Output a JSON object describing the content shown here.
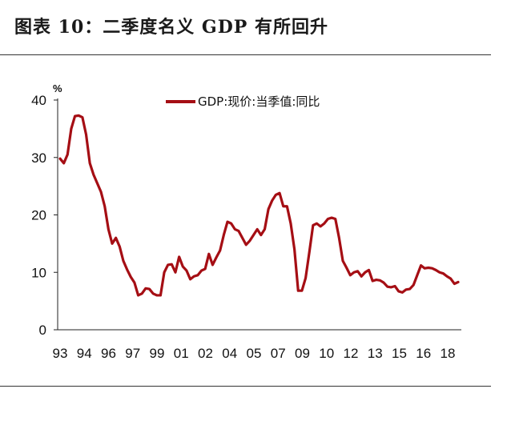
{
  "header": {
    "title": "图表 10：二季度名义 GDP 有所回升"
  },
  "chart_data": {
    "type": "line",
    "title": "图表 10：二季度名义 GDP 有所回升",
    "ylabel": "%",
    "ylim": [
      0,
      40
    ],
    "yticks": [
      0,
      10,
      20,
      30,
      40
    ],
    "x_tick_labels": [
      "93",
      "94",
      "96",
      "97",
      "99",
      "01",
      "02",
      "04",
      "05",
      "07",
      "09",
      "10",
      "12",
      "13",
      "15",
      "16",
      "18"
    ],
    "legend": "top-center",
    "colors": {
      "line": "#a50e14"
    },
    "series": [
      {
        "name": "GDP:现价:当季值:同比",
        "values": [
          29.8,
          29.0,
          30.5,
          35.0,
          37.2,
          37.3,
          37.0,
          34.0,
          29.0,
          27.0,
          25.5,
          24.0,
          21.5,
          17.5,
          15.0,
          16.0,
          14.5,
          12.0,
          10.5,
          9.2,
          8.2,
          6.0,
          6.3,
          7.2,
          7.1,
          6.3,
          6.0,
          6.0,
          10.0,
          11.3,
          11.4,
          10.0,
          12.7,
          11.0,
          10.3,
          8.8,
          9.3,
          9.5,
          10.3,
          10.6,
          13.2,
          11.3,
          12.6,
          13.8,
          16.5,
          18.8,
          18.5,
          17.5,
          17.2,
          16.0,
          14.8,
          15.5,
          16.5,
          17.5,
          16.5,
          17.5,
          21.0,
          22.5,
          23.5,
          23.8,
          21.5,
          21.5,
          18.5,
          14.0,
          6.8,
          6.8,
          9.0,
          13.5,
          18.2,
          18.5,
          18.0,
          18.5,
          19.3,
          19.5,
          19.3,
          16.0,
          12.0,
          10.8,
          9.5,
          10.0,
          10.2,
          9.3,
          10.0,
          10.4,
          8.5,
          8.7,
          8.6,
          8.2,
          7.5,
          7.4,
          7.6,
          6.7,
          6.5,
          7.0,
          7.1,
          7.8,
          9.5,
          11.2,
          10.7,
          10.8,
          10.7,
          10.4,
          10.0,
          9.8,
          9.3,
          8.9,
          8.0,
          8.3
        ]
      }
    ]
  }
}
